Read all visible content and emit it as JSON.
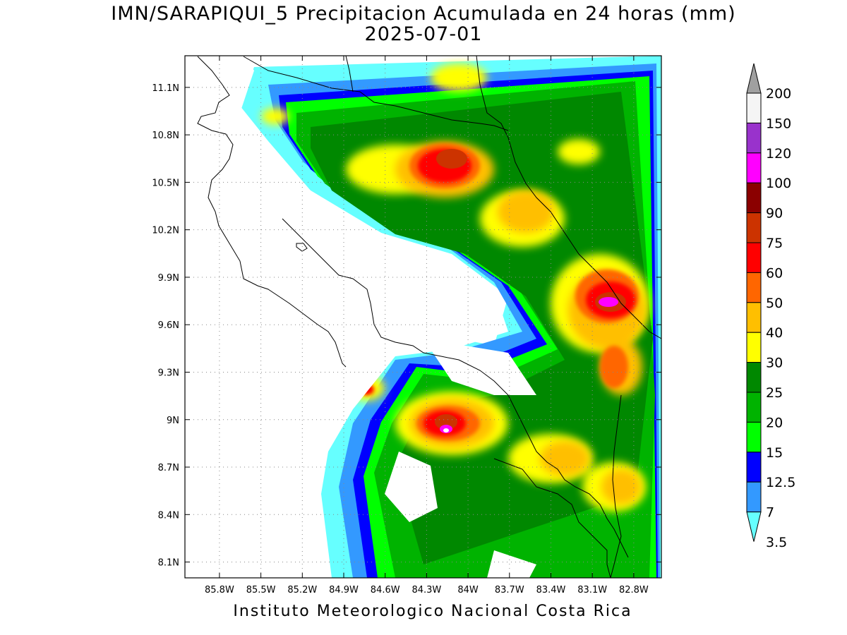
{
  "title": {
    "line1": "IMN/SARAPIQUI_5 Precipitacion Acumulada en 24 horas (mm)",
    "line2": "2025-07-01"
  },
  "footer": "Instituto Meteorologico Nacional Costa Rica",
  "map": {
    "lon_range": [
      -86.05,
      -82.6
    ],
    "lat_range": [
      8.0,
      11.3
    ],
    "lon_ticks": [
      "85.8W",
      "85.5W",
      "85.2W",
      "84.9W",
      "84.6W",
      "84.3W",
      "84W",
      "83.7W",
      "83.4W",
      "83.1W",
      "82.8W"
    ],
    "lat_ticks": [
      "11.1N",
      "10.8N",
      "10.5N",
      "10.2N",
      "9.9N",
      "9.6N",
      "9.3N",
      "9N",
      "8.7N",
      "8.4N",
      "8.1N"
    ],
    "grid": true
  },
  "legend": {
    "levels": [
      {
        "label": "200",
        "color": "#a0a0a0"
      },
      {
        "label": "150",
        "color": "#f5f5f5"
      },
      {
        "label": "120",
        "color": "#9932cc"
      },
      {
        "label": "100",
        "color": "#ff00ff"
      },
      {
        "label": "90",
        "color": "#8b0000"
      },
      {
        "label": "75",
        "color": "#cc3300"
      },
      {
        "label": "60",
        "color": "#ff0000"
      },
      {
        "label": "50",
        "color": "#ff6600"
      },
      {
        "label": "40",
        "color": "#ffbf00"
      },
      {
        "label": "30",
        "color": "#ffff00"
      },
      {
        "label": "25",
        "color": "#008800"
      },
      {
        "label": "20",
        "color": "#00b300"
      },
      {
        "label": "15",
        "color": "#00ff00"
      },
      {
        "label": "12.5",
        "color": "#0000ff"
      },
      {
        "label": "7",
        "color": "#3399ff"
      },
      {
        "label": "3.5",
        "color": "#66ffff"
      }
    ]
  }
}
